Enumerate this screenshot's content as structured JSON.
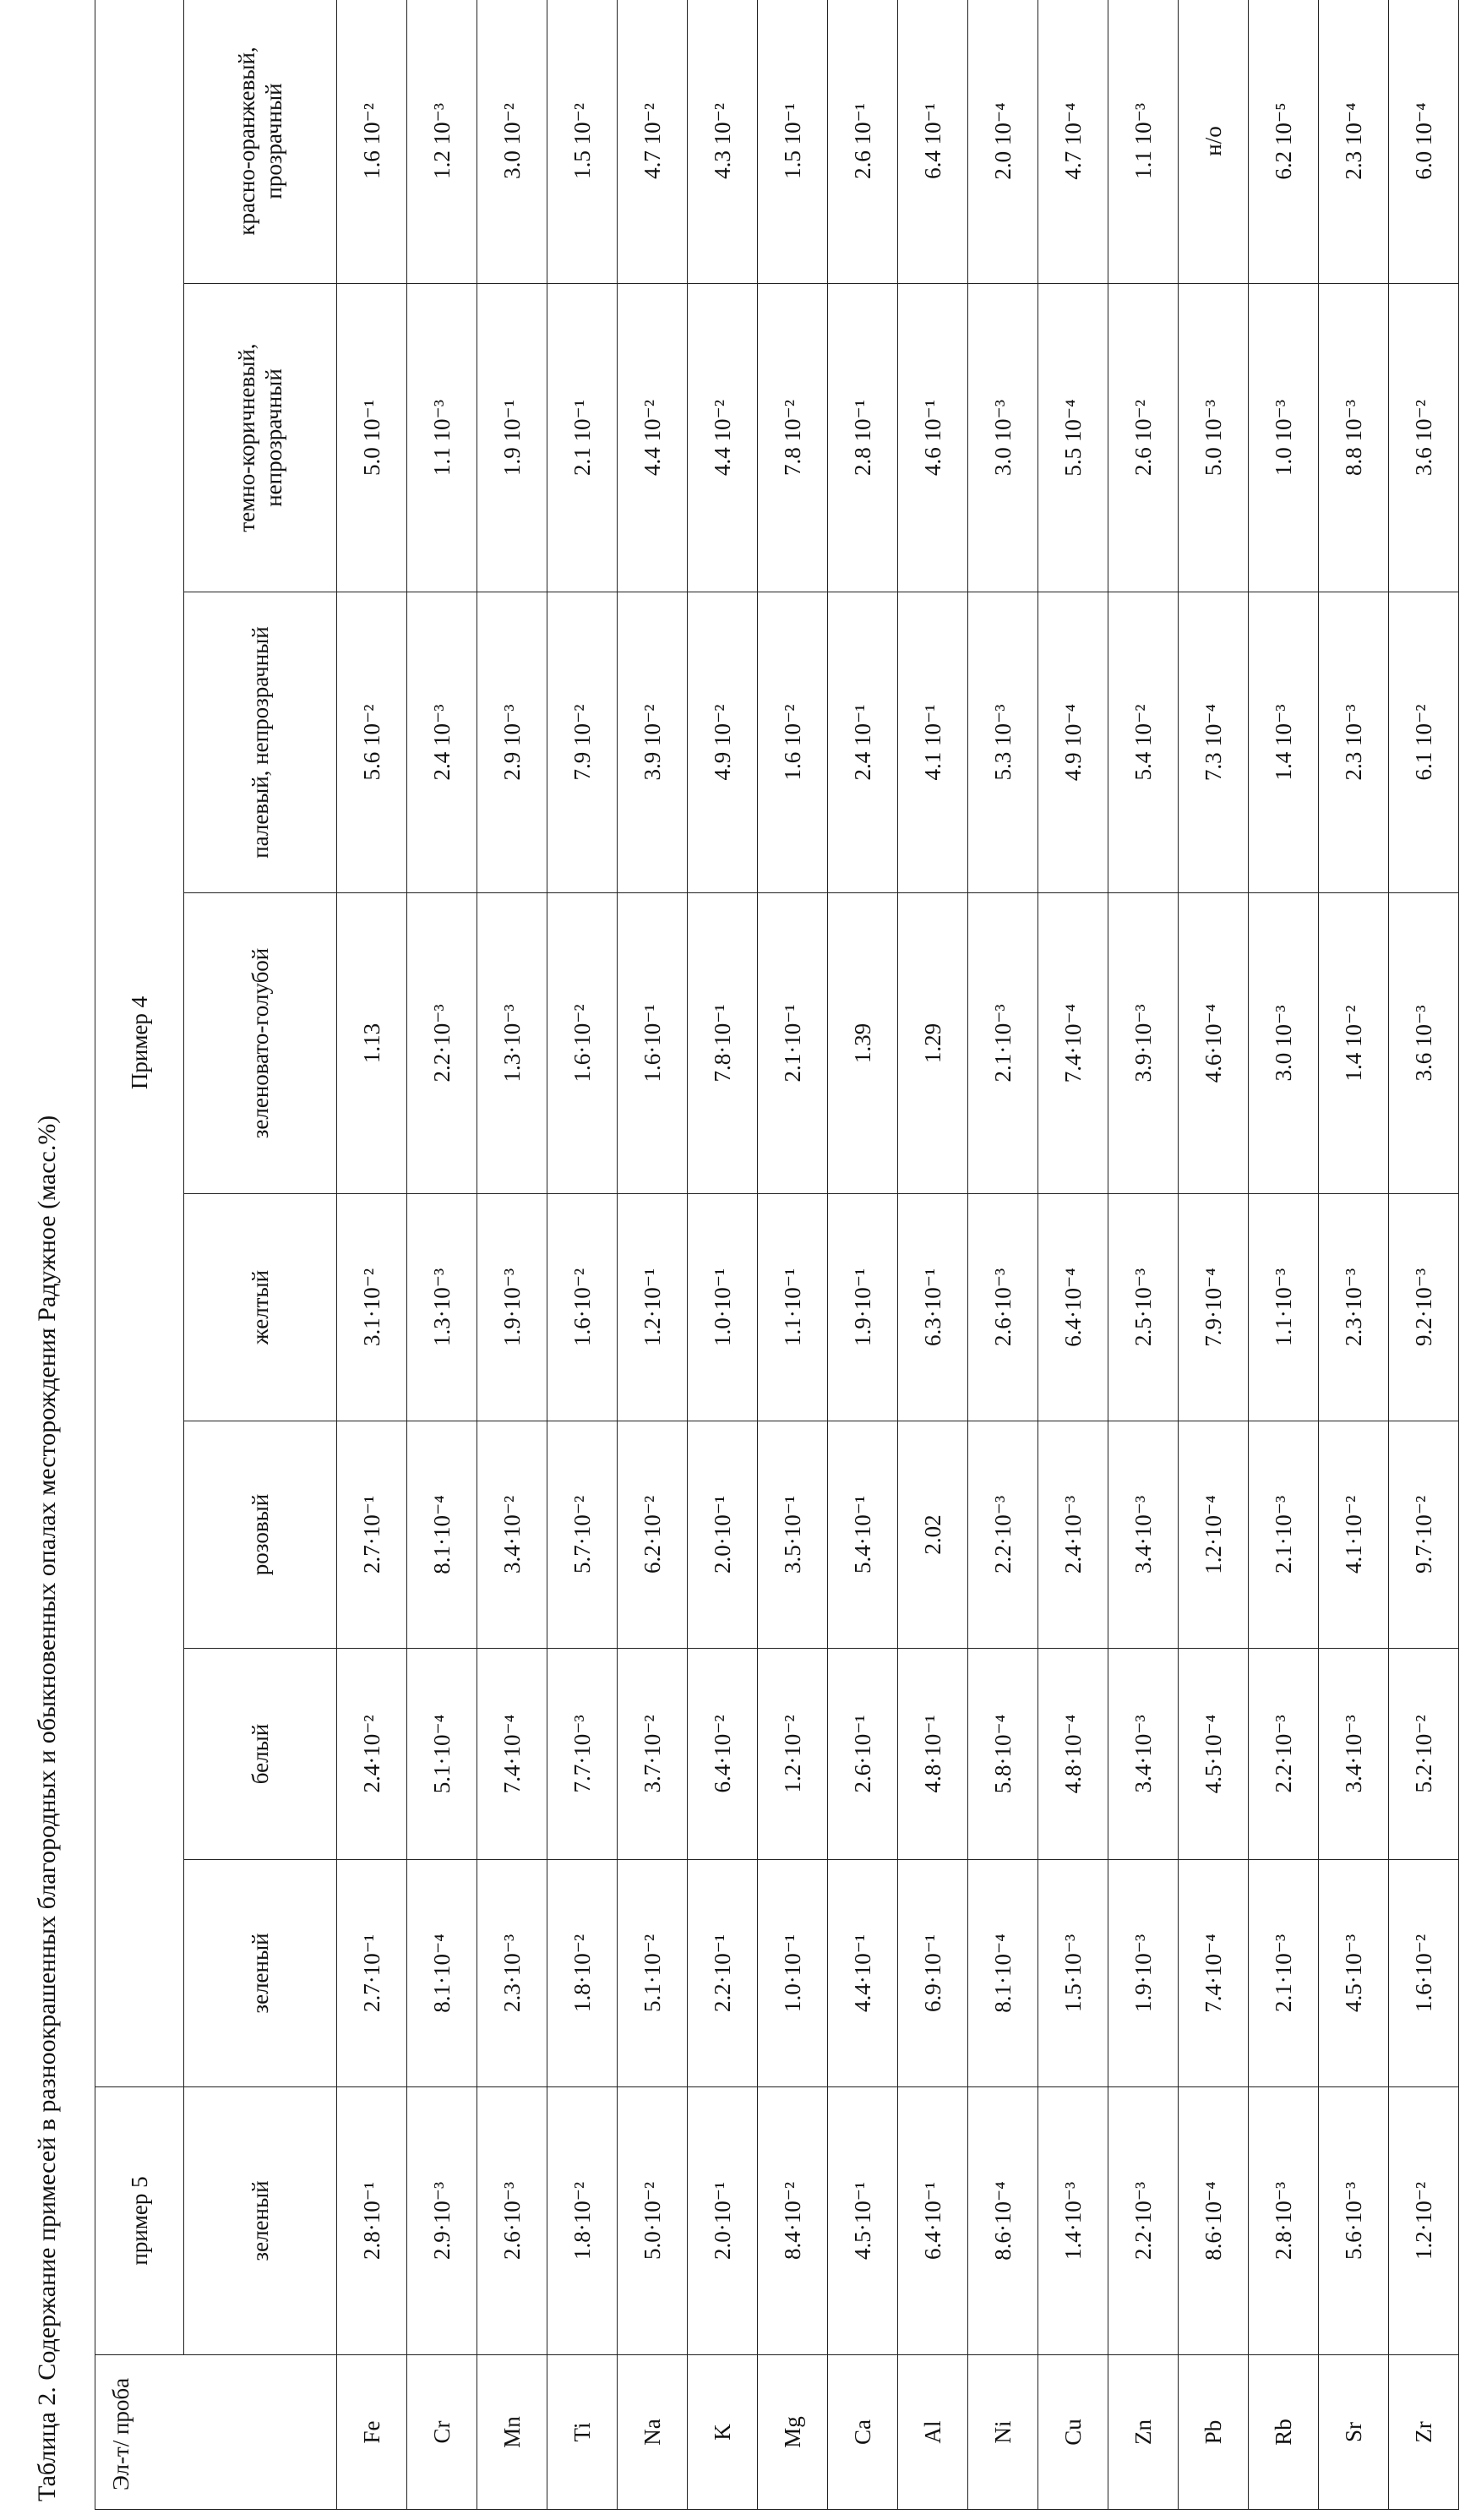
{
  "header": {
    "title": "Таблица 2. Содержание примесей в разноокрашенных благородных и обыкновенных опалах месторождения Радужное (масс.%)"
  },
  "table": {
    "corner": "Эл-т/ проба",
    "groups": [
      {
        "label": "пример 5",
        "span": 1
      },
      {
        "label": "Пример 4",
        "span": 8
      }
    ],
    "columns": [
      "зеленый",
      "зеленый",
      "белый",
      "розовый",
      "желтый",
      "зеленовато-голубой",
      "палевый, непрозрачный",
      "темно-коричневый, непрозрачный",
      "красно-оранжевый, прозрачный"
    ],
    "rows": [
      {
        "element": "Fe",
        "values": [
          "2.8·10⁻¹",
          "2.7·10⁻¹",
          "2.4·10⁻²",
          "2.7·10⁻¹",
          "3.1·10⁻²",
          "1.13",
          "5.6 10⁻²",
          "5.0 10⁻¹",
          "1.6 10⁻²"
        ]
      },
      {
        "element": "Cr",
        "values": [
          "2.9·10⁻³",
          "8.1·10⁻⁴",
          "5.1·10⁻⁴",
          "8.1·10⁻⁴",
          "1.3·10⁻³",
          "2.2·10⁻³",
          "2.4 10⁻³",
          "1.1 10⁻³",
          "1.2 10⁻³"
        ]
      },
      {
        "element": "Mn",
        "values": [
          "2.6·10⁻³",
          "2.3·10⁻³",
          "7.4·10⁻⁴",
          "3.4·10⁻²",
          "1.9·10⁻³",
          "1.3·10⁻³",
          "2.9 10⁻³",
          "1.9 10⁻¹",
          "3.0 10⁻²"
        ]
      },
      {
        "element": "Ti",
        "values": [
          "1.8·10⁻²",
          "1.8·10⁻²",
          "7.7·10⁻³",
          "5.7·10⁻²",
          "1.6·10⁻²",
          "1.6·10⁻²",
          "7.9 10⁻²",
          "2.1 10⁻¹",
          "1.5 10⁻²"
        ]
      },
      {
        "element": "Na",
        "values": [
          "5.0·10⁻²",
          "5.1·10⁻²",
          "3.7·10⁻²",
          "6.2·10⁻²",
          "1.2·10⁻¹",
          "1.6·10⁻¹",
          "3.9 10⁻²",
          "4.4 10⁻²",
          "4.7 10⁻²"
        ]
      },
      {
        "element": "K",
        "values": [
          "2.0·10⁻¹",
          "2.2·10⁻¹",
          "6.4·10⁻²",
          "2.0·10⁻¹",
          "1.0·10⁻¹",
          "7.8·10⁻¹",
          "4.9 10⁻²",
          "4.4 10⁻²",
          "4.3 10⁻²"
        ]
      },
      {
        "element": "Mg",
        "values": [
          "8.4·10⁻²",
          "1.0·10⁻¹",
          "1.2·10⁻²",
          "3.5·10⁻¹",
          "1.1·10⁻¹",
          "2.1·10⁻¹",
          "1.6 10⁻²",
          "7.8 10⁻²",
          "1.5 10⁻¹"
        ]
      },
      {
        "element": "Ca",
        "values": [
          "4.5·10⁻¹",
          "4.4·10⁻¹",
          "2.6·10⁻¹",
          "5.4·10⁻¹",
          "1.9·10⁻¹",
          "1.39",
          "2.4 10⁻¹",
          "2.8 10⁻¹",
          "2.6 10⁻¹"
        ]
      },
      {
        "element": "Al",
        "values": [
          "6.4·10⁻¹",
          "6.9·10⁻¹",
          "4.8·10⁻¹",
          "2.02",
          "6.3·10⁻¹",
          "1.29",
          "4.1 10⁻¹",
          "4.6 10⁻¹",
          "6.4 10⁻¹"
        ]
      },
      {
        "element": "Ni",
        "values": [
          "8.6·10⁻⁴",
          "8.1·10⁻⁴",
          "5.8·10⁻⁴",
          "2.2·10⁻³",
          "2.6·10⁻³",
          "2.1·10⁻³",
          "5.3 10⁻³",
          "3.0 10⁻³",
          "2.0 10⁻⁴"
        ]
      },
      {
        "element": "Cu",
        "values": [
          "1.4·10⁻³",
          "1.5·10⁻³",
          "4.8·10⁻⁴",
          "2.4·10⁻³",
          "6.4·10⁻⁴",
          "7.4·10⁻⁴",
          "4.9 10⁻⁴",
          "5.5 10⁻⁴",
          "4.7 10⁻⁴"
        ]
      },
      {
        "element": "Zn",
        "values": [
          "2.2·10⁻³",
          "1.9·10⁻³",
          "3.4·10⁻³",
          "3.4·10⁻³",
          "2.5·10⁻³",
          "3.9·10⁻³",
          "5.4 10⁻²",
          "2.6 10⁻²",
          "1.1 10⁻³"
        ]
      },
      {
        "element": "Pb",
        "values": [
          "8.6·10⁻⁴",
          "7.4·10⁻⁴",
          "4.5·10⁻⁴",
          "1.2·10⁻⁴",
          "7.9·10⁻⁴",
          "4.6·10⁻⁴",
          "7.3 10⁻⁴",
          "5.0 10⁻³",
          "н/о"
        ]
      },
      {
        "element": "Rb",
        "values": [
          "2.8·10⁻³",
          "2.1·10⁻³",
          "2.2·10⁻³",
          "2.1·10⁻³",
          "1.1·10⁻³",
          "3.0 10⁻³",
          "1.4 10⁻³",
          "1.0 10⁻³",
          "6.2 10⁻⁵"
        ]
      },
      {
        "element": "Sr",
        "values": [
          "5.6·10⁻³",
          "4.5·10⁻³",
          "3.4·10⁻³",
          "4.1·10⁻²",
          "2.3·10⁻³",
          "1.4 10⁻²",
          "2.3 10⁻³",
          "8.8 10⁻³",
          "2.3 10⁻⁴"
        ]
      },
      {
        "element": "Zr",
        "values": [
          "1.2·10⁻²",
          "1.6·10⁻²",
          "5.2·10⁻²",
          "9.7·10⁻²",
          "9.2·10⁻³",
          "3.6 10⁻³",
          "6.1 10⁻²",
          "3.6 10⁻²",
          "6.0 10⁻⁴"
        ]
      }
    ]
  }
}
